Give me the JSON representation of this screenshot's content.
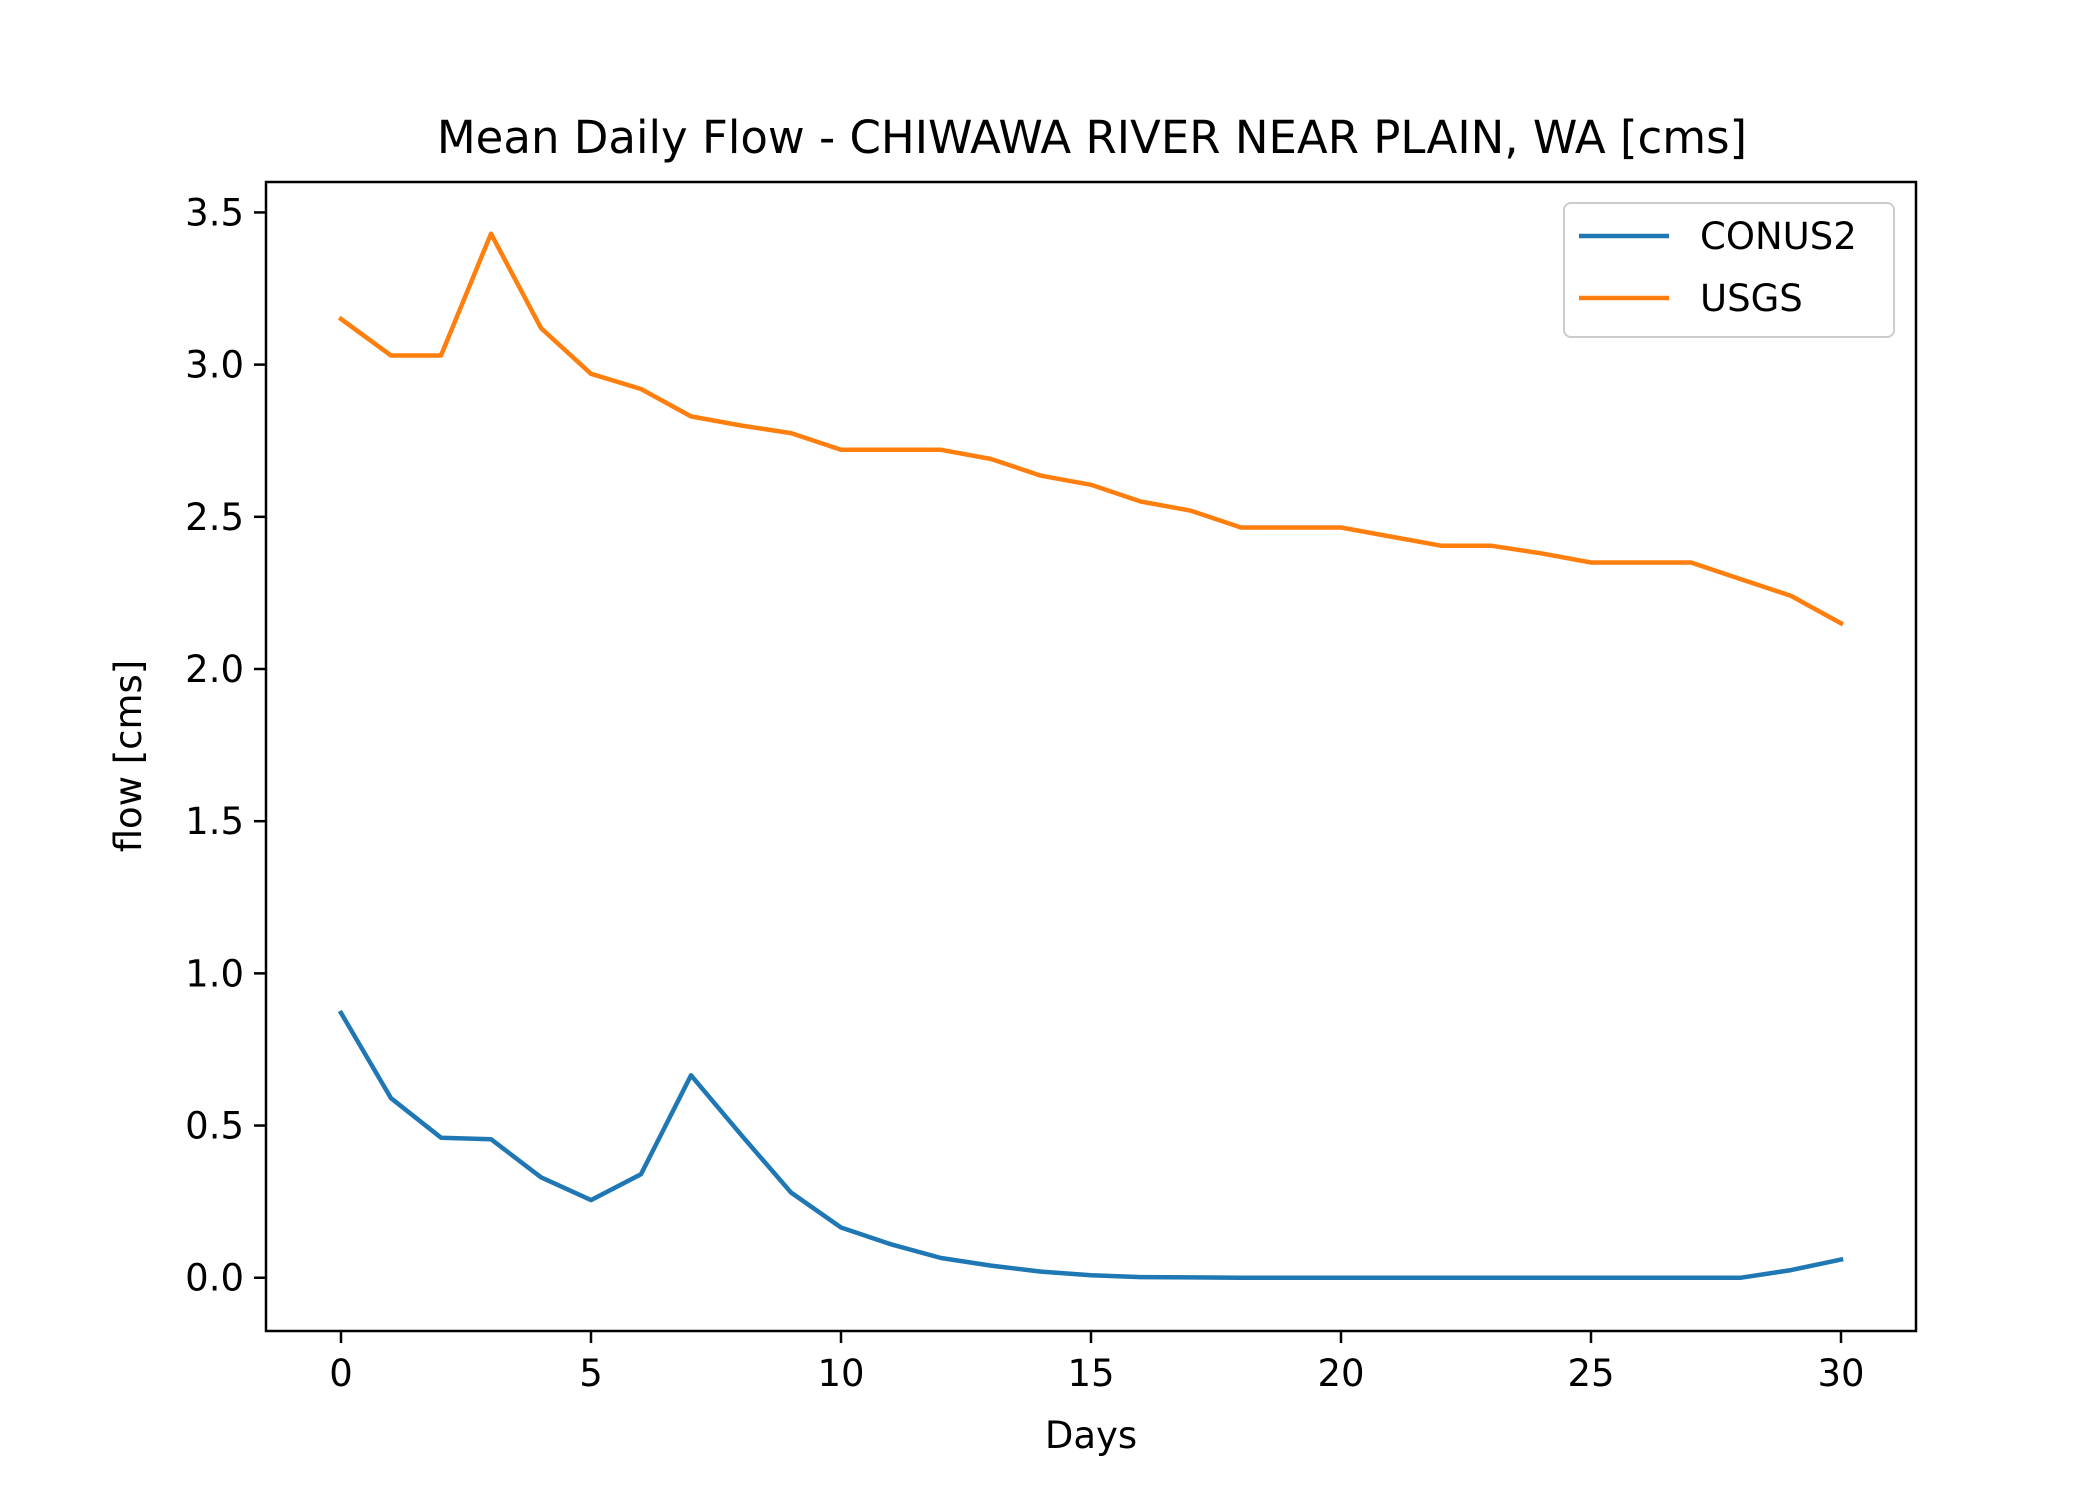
{
  "chart_data": {
    "type": "line",
    "title": "Mean Daily Flow - CHIWAWA RIVER NEAR PLAIN, WA [cms]",
    "xlabel": "Days",
    "ylabel": "flow [cms]",
    "xlim": [
      -1.5,
      31.5
    ],
    "ylim": [
      -0.175,
      3.6
    ],
    "xticks": [
      0,
      5,
      10,
      15,
      20,
      25,
      30
    ],
    "xtick_labels": [
      "0",
      "5",
      "10",
      "15",
      "20",
      "25",
      "30"
    ],
    "yticks": [
      0.0,
      0.5,
      1.0,
      1.5,
      2.0,
      2.5,
      3.0,
      3.5
    ],
    "ytick_labels": [
      "0.0",
      "0.5",
      "1.0",
      "1.5",
      "2.0",
      "2.5",
      "3.0",
      "3.5"
    ],
    "grid": false,
    "legend_position": "upper right",
    "x": [
      0,
      1,
      2,
      3,
      4,
      5,
      6,
      7,
      8,
      9,
      10,
      11,
      12,
      13,
      14,
      15,
      16,
      17,
      18,
      19,
      20,
      21,
      22,
      23,
      24,
      25,
      26,
      27,
      28,
      29,
      30
    ],
    "series": [
      {
        "name": "CONUS2",
        "color": "#1f77b4",
        "values": [
          0.87,
          0.59,
          0.46,
          0.455,
          0.33,
          0.255,
          0.34,
          0.665,
          0.47,
          0.28,
          0.165,
          0.11,
          0.065,
          0.04,
          0.02,
          0.008,
          0.002,
          0.001,
          0.0,
          0.0,
          0.0,
          0.0,
          0.0,
          0.0,
          0.0,
          0.0,
          0.0,
          0.0,
          0.0,
          0.025,
          0.06
        ]
      },
      {
        "name": "USGS",
        "color": "#ff7f0e",
        "values": [
          3.15,
          3.03,
          3.03,
          3.43,
          3.12,
          2.97,
          2.92,
          2.83,
          2.8,
          2.775,
          2.72,
          2.72,
          2.72,
          2.69,
          2.635,
          2.605,
          2.55,
          2.52,
          2.465,
          2.465,
          2.465,
          2.435,
          2.405,
          2.405,
          2.38,
          2.35,
          2.35,
          2.35,
          2.295,
          2.24,
          2.15
        ]
      }
    ]
  }
}
